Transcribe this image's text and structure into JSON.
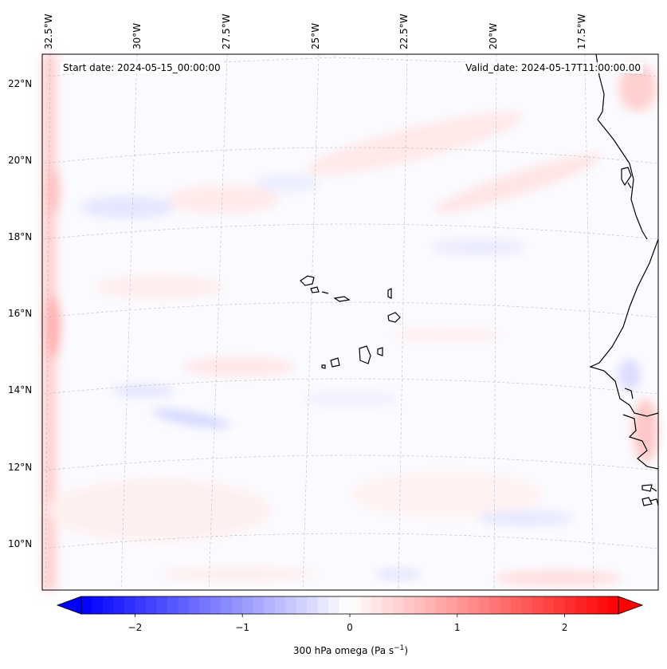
{
  "map": {
    "lon_labels": [
      "32.5°W",
      "30°W",
      "27.5°W",
      "25°W",
      "22.5°W",
      "20°W",
      "17.5°W"
    ],
    "lat_labels": [
      "22°N",
      "20°N",
      "18°N",
      "16°N",
      "14°N",
      "12°N",
      "10°N"
    ],
    "start_date_label": "Start date: 2024-05-15_00:00:00",
    "valid_date_label": "Valid_date: 2024-05-17T11:00:00.00",
    "gridlines": true,
    "field": "300 hPa omega"
  },
  "colorbar": {
    "min": -2.5,
    "max": 2.5,
    "ticks": [
      "−2",
      "−1",
      "0",
      "1",
      "2"
    ],
    "tick_values": [
      -2,
      -1,
      0,
      1,
      2
    ],
    "label": "300 hPa omega (Pa s",
    "label_sup": "−1",
    "label_close": ")",
    "cmap": "bwr",
    "extend": "both"
  },
  "colors": {
    "negative": "#0000ff",
    "zero": "#ffffff",
    "positive": "#ff0000",
    "coastline": "#000000"
  }
}
